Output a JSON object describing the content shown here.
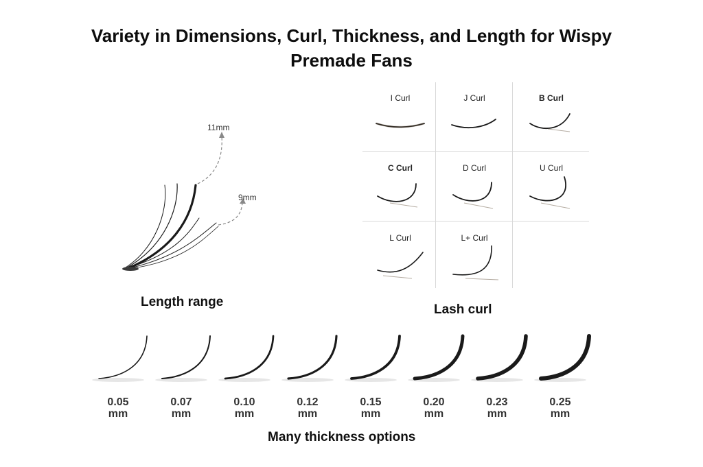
{
  "title": {
    "line1": "Variety in Dimensions, Curl, Thickness, and Length for Wispy",
    "line2": "Premade Fans"
  },
  "length": {
    "label": "Length range",
    "max": "11mm",
    "min": "9mm"
  },
  "curl": {
    "label": "Lash curl",
    "types": [
      "I Curl",
      "J Curl",
      "B Curl",
      "C Curl",
      "D Curl",
      "U Curl",
      "L Curl",
      "L+ Curl"
    ]
  },
  "thickness": {
    "label": "Many thickness options",
    "options": [
      {
        "value": "0.05",
        "unit": "mm"
      },
      {
        "value": "0.07",
        "unit": "mm"
      },
      {
        "value": "0.10",
        "unit": "mm"
      },
      {
        "value": "0.12",
        "unit": "mm"
      },
      {
        "value": "0.15",
        "unit": "mm"
      },
      {
        "value": "0.20",
        "unit": "mm"
      },
      {
        "value": "0.23",
        "unit": "mm"
      },
      {
        "value": "0.25",
        "unit": "mm"
      }
    ]
  },
  "colors": {
    "lash": "#1a1a1a",
    "lash_base": "#6b5a45",
    "grid": "#d9d9d9",
    "arrow": "#888888"
  }
}
